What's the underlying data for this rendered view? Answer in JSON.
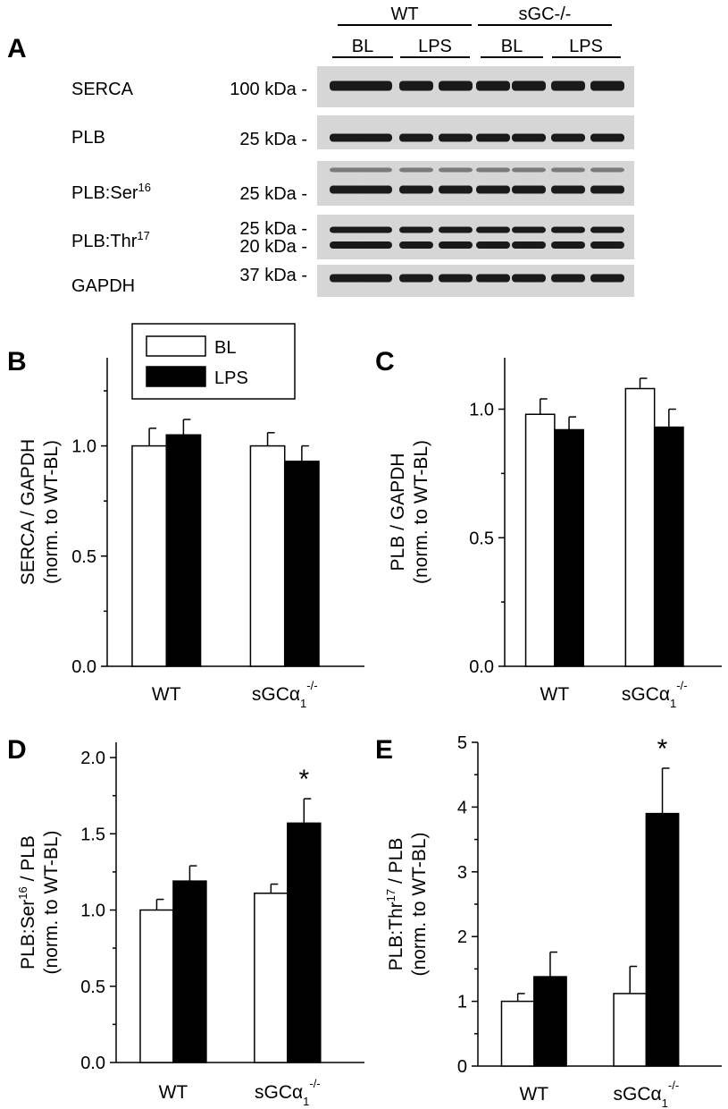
{
  "panel_a": {
    "letter": "A",
    "group_headers": [
      "WT",
      "sGC-/-"
    ],
    "condition_headers": [
      "BL",
      "LPS",
      "BL",
      "LPS"
    ],
    "blots": [
      {
        "protein": "SERCA",
        "marker": "100 kDa -"
      },
      {
        "protein": "PLB",
        "marker": "25 kDa -"
      },
      {
        "protein": "PLB:Ser16",
        "marker": "25 kDa -"
      },
      {
        "protein": "PLB:Thr17",
        "marker": "25 kDa -",
        "marker2": "20 kDa -"
      },
      {
        "protein": "GAPDH",
        "marker": "37 kDa -"
      }
    ]
  },
  "legend": {
    "entries": [
      "BL",
      "LPS"
    ],
    "colors": [
      "#ffffff",
      "#000000"
    ]
  },
  "chart_data": [
    {
      "panel": "B",
      "type": "bar",
      "categories": [
        "WT",
        "sGCα1-/-"
      ],
      "ylabel": "SERCA / GAPDH",
      "ylabel2": "(norm. to WT-BL)",
      "ylim": [
        0,
        1.4
      ],
      "yticks": [
        "0.0",
        "0.5",
        "1.0"
      ],
      "series": [
        {
          "name": "BL",
          "color": "#ffffff",
          "values": [
            1.0,
            1.0
          ],
          "errors": [
            0.08,
            0.06
          ]
        },
        {
          "name": "LPS",
          "color": "#000000",
          "values": [
            1.05,
            0.93
          ],
          "errors": [
            0.07,
            0.07
          ]
        }
      ],
      "annotations": []
    },
    {
      "panel": "C",
      "type": "bar",
      "categories": [
        "WT",
        "sGCα1-/-"
      ],
      "ylabel": "PLB / GAPDH",
      "ylabel2": "(norm. to WT-BL)",
      "ylim": [
        0,
        1.2
      ],
      "yticks": [
        "0.0",
        "0.5",
        "1.0"
      ],
      "series": [
        {
          "name": "BL",
          "color": "#ffffff",
          "values": [
            0.98,
            1.08
          ],
          "errors": [
            0.06,
            0.04
          ]
        },
        {
          "name": "LPS",
          "color": "#000000",
          "values": [
            0.92,
            0.93
          ],
          "errors": [
            0.05,
            0.07
          ]
        }
      ],
      "annotations": []
    },
    {
      "panel": "D",
      "type": "bar",
      "categories": [
        "WT",
        "sGCα1-/-"
      ],
      "ylabel": "PLB:Ser16 / PLB",
      "ylabel2": "(norm. to WT-BL)",
      "ylim": [
        0,
        2.1
      ],
      "yticks": [
        "0.0",
        "0.5",
        "1.0",
        "1.5",
        "2.0"
      ],
      "series": [
        {
          "name": "BL",
          "color": "#ffffff",
          "values": [
            1.0,
            1.11
          ],
          "errors": [
            0.07,
            0.06
          ]
        },
        {
          "name": "LPS",
          "color": "#000000",
          "values": [
            1.19,
            1.57
          ],
          "errors": [
            0.1,
            0.16
          ]
        }
      ],
      "annotations": [
        "*"
      ]
    },
    {
      "panel": "E",
      "type": "bar",
      "categories": [
        "WT",
        "sGCα1-/-"
      ],
      "ylabel": "PLB:Thr17 / PLB",
      "ylabel2": "(norm. to WT-BL)",
      "ylim": [
        0,
        5
      ],
      "yticks": [
        "0",
        "1",
        "2",
        "3",
        "4",
        "5"
      ],
      "series": [
        {
          "name": "BL",
          "color": "#ffffff",
          "values": [
            1.0,
            1.12
          ],
          "errors": [
            0.12,
            0.42
          ]
        },
        {
          "name": "LPS",
          "color": "#000000",
          "values": [
            1.38,
            3.9
          ],
          "errors": [
            0.38,
            0.7
          ]
        }
      ],
      "annotations": [
        "*"
      ]
    }
  ]
}
